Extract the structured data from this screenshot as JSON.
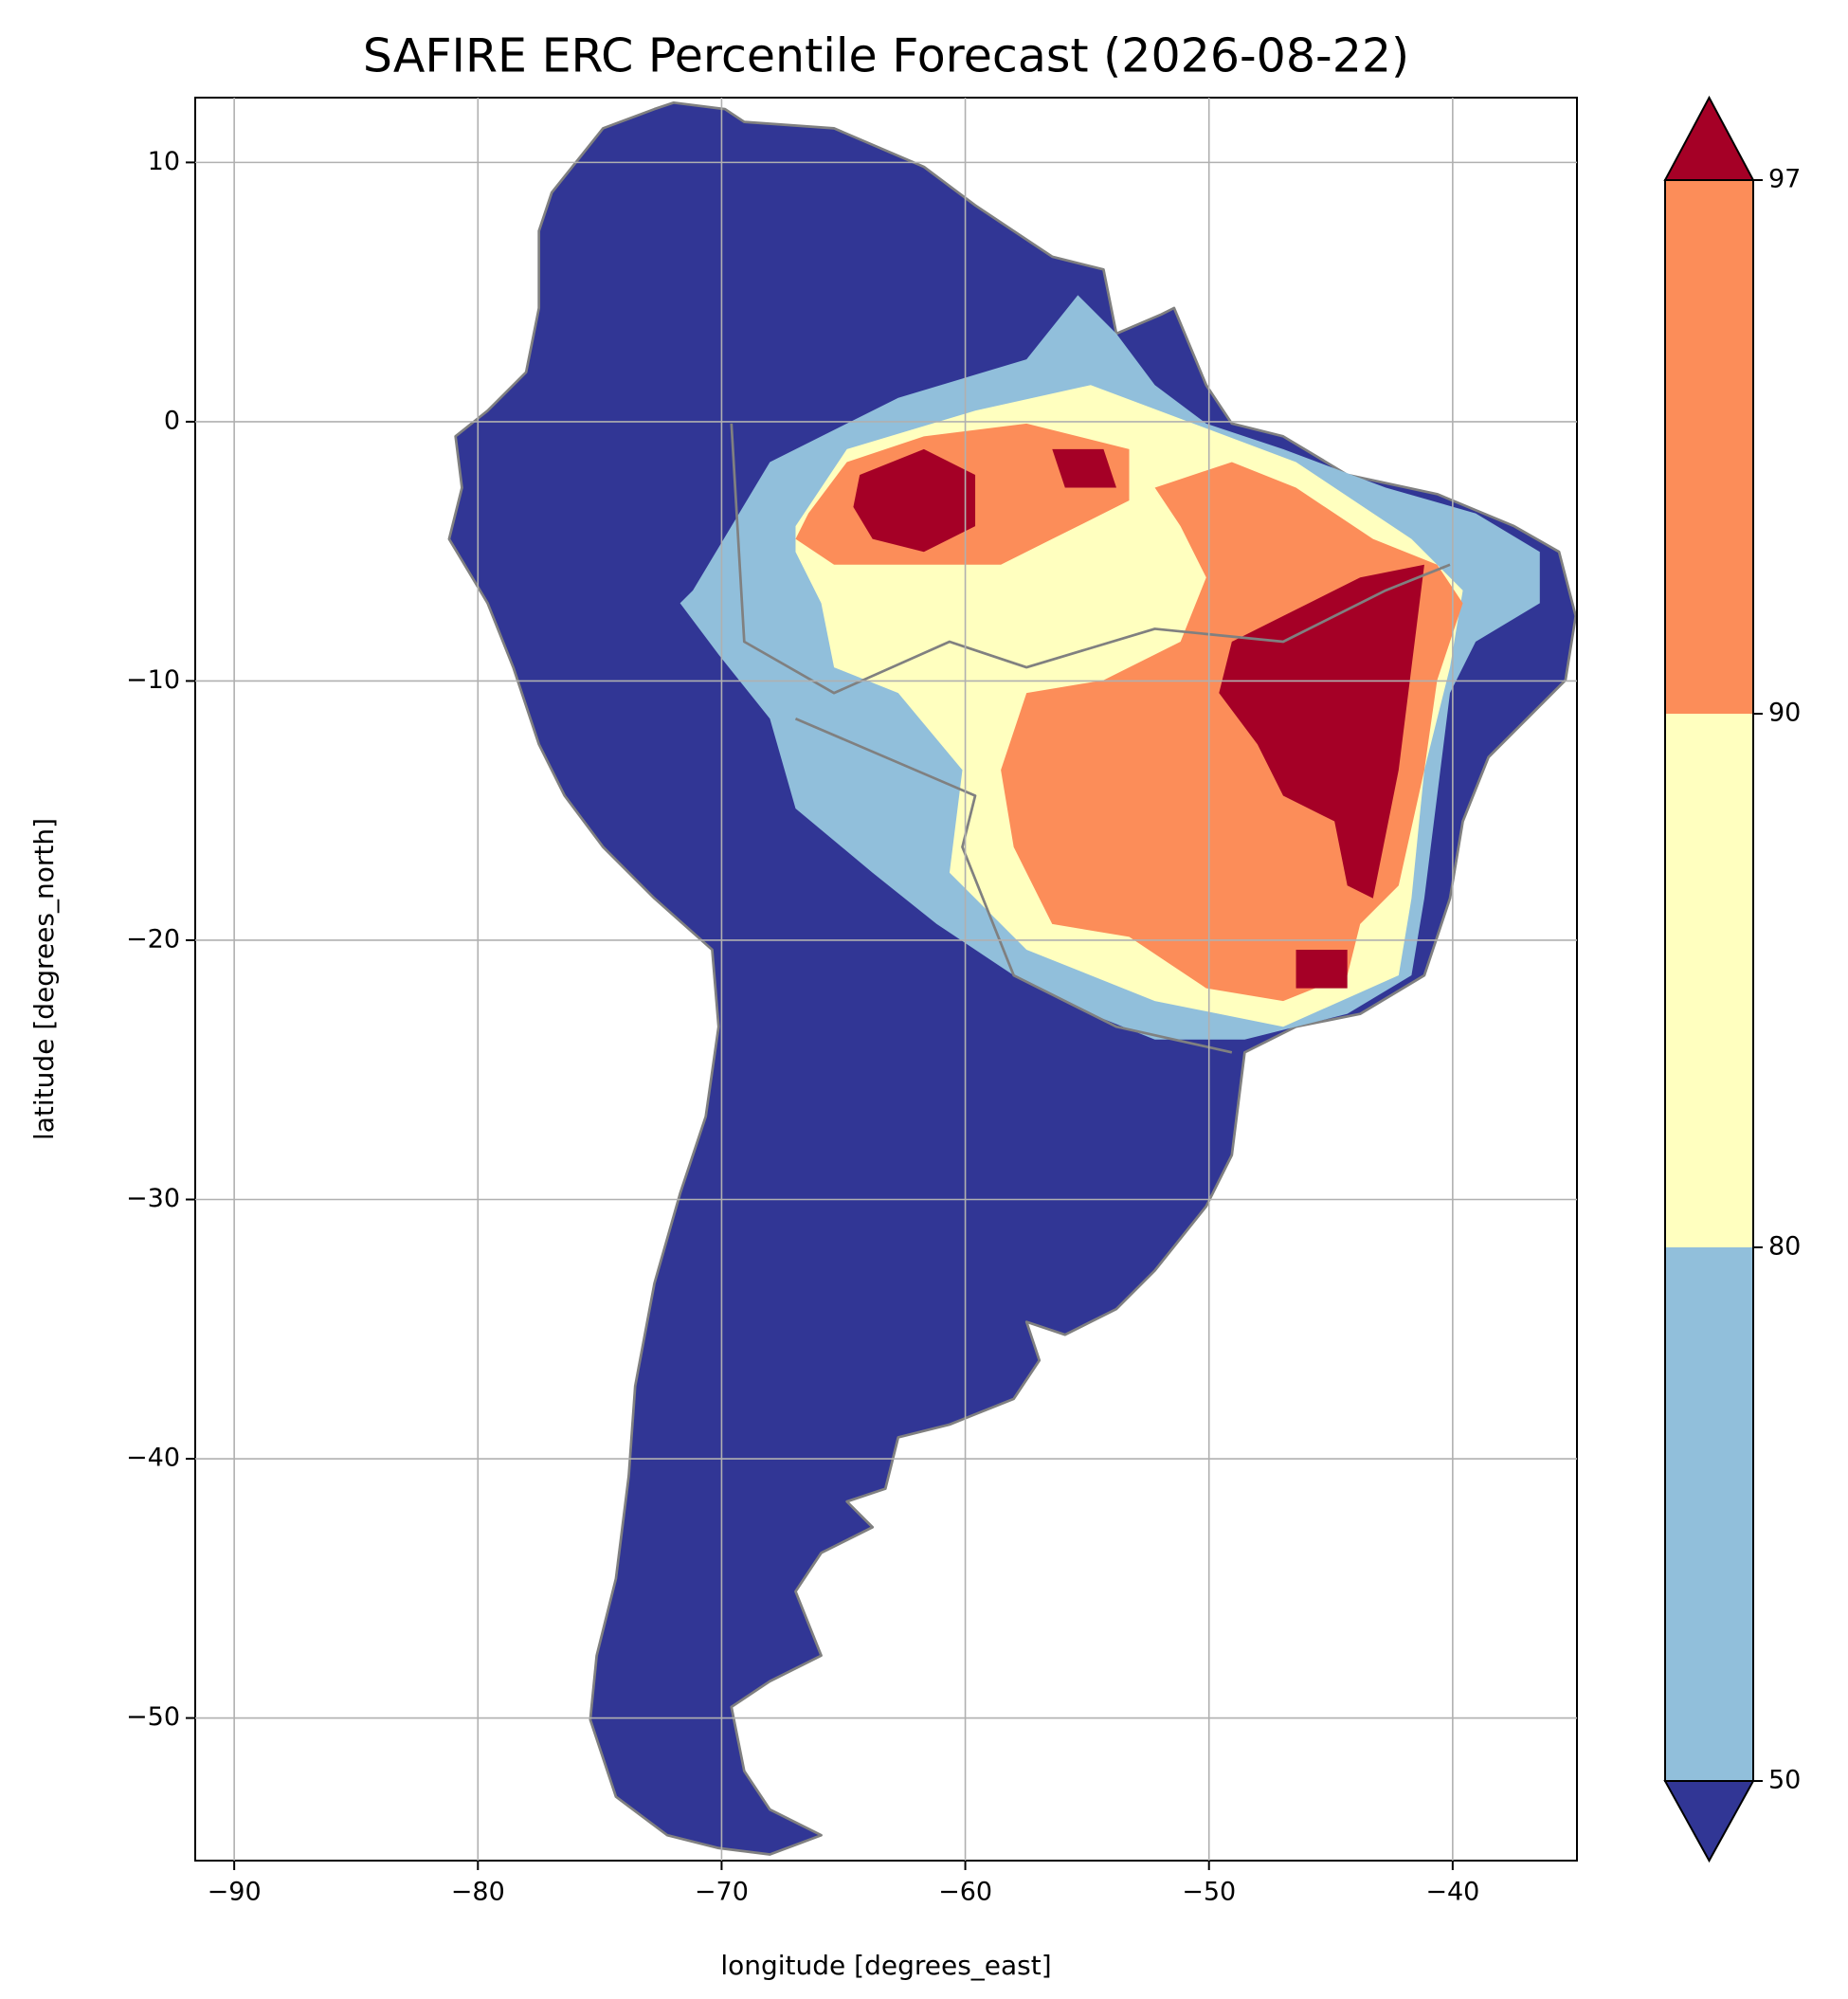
{
  "chart_data": {
    "type": "map",
    "title": "SAFIRE ERC Percentile Forecast (2026-08-22)",
    "xlabel": "longitude [degrees_east]",
    "ylabel": "latitude [degrees_north]",
    "xlim": [
      -91.6,
      -34.9
    ],
    "ylim": [
      -55.5,
      12.5
    ],
    "xticks": [
      {
        "value": -90,
        "label": "−90"
      },
      {
        "value": -80,
        "label": "−80"
      },
      {
        "value": -70,
        "label": "−70"
      },
      {
        "value": -60,
        "label": "−60"
      },
      {
        "value": -50,
        "label": "−50"
      },
      {
        "value": -40,
        "label": "−40"
      }
    ],
    "yticks": [
      {
        "value": -50,
        "label": "−50"
      },
      {
        "value": -40,
        "label": "−40"
      },
      {
        "value": -30,
        "label": "−30"
      },
      {
        "value": -20,
        "label": "−20"
      },
      {
        "value": -10,
        "label": "−10"
      },
      0,
      10
    ],
    "grid": true,
    "colorbar": {
      "ticks": [
        50,
        80,
        90,
        97
      ],
      "colors": [
        "#91bfdb",
        "#ffffbf",
        "#fc8d59"
      ],
      "under_color": "#313695",
      "over_color": "#a50026"
    }
  }
}
